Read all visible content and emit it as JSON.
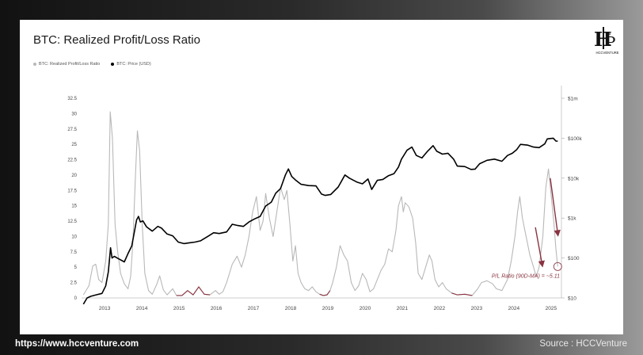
{
  "header": {
    "title": "BTC: Realized Profit/Loss Ratio",
    "logo_text": "HCCVENTURE"
  },
  "legend": [
    {
      "label": "BTC: Realized Profit/Loss Ratio",
      "color": "#b8b8b8"
    },
    {
      "label": "BTC: Price (USD)",
      "color": "#000000"
    }
  ],
  "footer": {
    "url": "https://www.hccventure.com",
    "source": "Source : HCCVenture"
  },
  "colors": {
    "ratio_line": "#b8b8b8",
    "price_line": "#000000",
    "annotation": "#8a3340",
    "low_band": "#8a3340"
  },
  "chart_data": {
    "type": "line",
    "title": "BTC: Realized Profit/Loss Ratio",
    "x_tick_labels": [
      "2013",
      "2014",
      "2015",
      "2016",
      "2017",
      "2018",
      "2019",
      "2020",
      "2021",
      "2022",
      "2023",
      "2024",
      "2025"
    ],
    "left_axis": {
      "ticks": [
        "0",
        "2.5",
        "5",
        "7.5",
        "10",
        "12.5",
        "15",
        "17.5",
        "20",
        "22.5",
        "25",
        "27.5",
        "30",
        "32.5"
      ],
      "range": [
        0,
        32.5
      ]
    },
    "right_axis": {
      "scale": "log",
      "ticks": [
        "$10",
        "$100",
        "$1k",
        "$10k",
        "$100k",
        "$1m"
      ],
      "range": [
        10,
        1000000
      ]
    },
    "series": [
      {
        "name": "BTC: Realized Profit/Loss Ratio",
        "axis": "left",
        "points": [
          [
            2012.45,
            0.5
          ],
          [
            2012.6,
            2
          ],
          [
            2012.7,
            5.2
          ],
          [
            2012.78,
            5.5
          ],
          [
            2012.86,
            3
          ],
          [
            2012.95,
            2.5
          ],
          [
            2013.05,
            6
          ],
          [
            2013.12,
            12
          ],
          [
            2013.17,
            30.3
          ],
          [
            2013.23,
            26
          ],
          [
            2013.3,
            12
          ],
          [
            2013.37,
            7.5
          ],
          [
            2013.45,
            4
          ],
          [
            2013.55,
            2.3
          ],
          [
            2013.65,
            1.5
          ],
          [
            2013.72,
            3.5
          ],
          [
            2013.78,
            9
          ],
          [
            2013.85,
            20
          ],
          [
            2013.9,
            27.2
          ],
          [
            2013.96,
            24
          ],
          [
            2014.03,
            12
          ],
          [
            2014.1,
            4
          ],
          [
            2014.2,
            1.2
          ],
          [
            2014.3,
            0.6
          ],
          [
            2014.42,
            2.2
          ],
          [
            2014.5,
            3.6
          ],
          [
            2014.6,
            1.3
          ],
          [
            2014.7,
            0.5
          ],
          [
            2014.85,
            1.5
          ],
          [
            2014.95,
            0.4
          ],
          [
            2015.1,
            0.4
          ],
          [
            2015.25,
            1.2
          ],
          [
            2015.4,
            0.5
          ],
          [
            2015.55,
            1.8
          ],
          [
            2015.7,
            0.6
          ],
          [
            2015.85,
            0.5
          ],
          [
            2016.0,
            1.2
          ],
          [
            2016.1,
            0.6
          ],
          [
            2016.2,
            1.0
          ],
          [
            2016.3,
            2.5
          ],
          [
            2016.45,
            5.5
          ],
          [
            2016.58,
            6.8
          ],
          [
            2016.7,
            5
          ],
          [
            2016.8,
            7
          ],
          [
            2016.9,
            10
          ],
          [
            2017.0,
            14
          ],
          [
            2017.1,
            16.5
          ],
          [
            2017.2,
            11
          ],
          [
            2017.28,
            12.5
          ],
          [
            2017.35,
            17
          ],
          [
            2017.45,
            13
          ],
          [
            2017.55,
            10
          ],
          [
            2017.65,
            14
          ],
          [
            2017.75,
            18
          ],
          [
            2017.85,
            16
          ],
          [
            2017.92,
            17.5
          ],
          [
            2018.0,
            12
          ],
          [
            2018.08,
            6
          ],
          [
            2018.15,
            8.5
          ],
          [
            2018.22,
            4
          ],
          [
            2018.3,
            2.5
          ],
          [
            2018.4,
            1.5
          ],
          [
            2018.5,
            1.2
          ],
          [
            2018.6,
            1.8
          ],
          [
            2018.7,
            1.0
          ],
          [
            2018.8,
            0.6
          ],
          [
            2018.9,
            0.4
          ],
          [
            2019.0,
            0.5
          ],
          [
            2019.08,
            1.2
          ],
          [
            2019.15,
            2.5
          ],
          [
            2019.25,
            5
          ],
          [
            2019.35,
            8.5
          ],
          [
            2019.45,
            7
          ],
          [
            2019.55,
            6
          ],
          [
            2019.65,
            2.5
          ],
          [
            2019.75,
            1.2
          ],
          [
            2019.85,
            2
          ],
          [
            2019.95,
            4
          ],
          [
            2020.05,
            3
          ],
          [
            2020.15,
            1
          ],
          [
            2020.25,
            1.5
          ],
          [
            2020.35,
            3
          ],
          [
            2020.45,
            4.5
          ],
          [
            2020.55,
            5.5
          ],
          [
            2020.65,
            8
          ],
          [
            2020.75,
            7.5
          ],
          [
            2020.85,
            11
          ],
          [
            2020.92,
            15
          ],
          [
            2021.0,
            16.5
          ],
          [
            2021.05,
            14
          ],
          [
            2021.1,
            15.5
          ],
          [
            2021.2,
            14.8
          ],
          [
            2021.3,
            13
          ],
          [
            2021.38,
            9
          ],
          [
            2021.45,
            4
          ],
          [
            2021.55,
            3
          ],
          [
            2021.65,
            5
          ],
          [
            2021.75,
            7
          ],
          [
            2021.82,
            6
          ],
          [
            2021.9,
            3
          ],
          [
            2022.0,
            1.8
          ],
          [
            2022.1,
            2.5
          ],
          [
            2022.2,
            1.5
          ],
          [
            2022.35,
            0.8
          ],
          [
            2022.5,
            0.5
          ],
          [
            2022.7,
            0.6
          ],
          [
            2022.9,
            0.4
          ],
          [
            2023.05,
            1.5
          ],
          [
            2023.15,
            2.5
          ],
          [
            2023.3,
            2.8
          ],
          [
            2023.45,
            2.3
          ],
          [
            2023.55,
            1.5
          ],
          [
            2023.7,
            1.2
          ],
          [
            2023.85,
            3
          ],
          [
            2023.95,
            6
          ],
          [
            2024.05,
            10
          ],
          [
            2024.12,
            14
          ],
          [
            2024.18,
            16.5
          ],
          [
            2024.25,
            13
          ],
          [
            2024.35,
            10
          ],
          [
            2024.45,
            7
          ],
          [
            2024.55,
            5
          ],
          [
            2024.62,
            3.5
          ],
          [
            2024.7,
            5
          ],
          [
            2024.8,
            10
          ],
          [
            2024.88,
            18
          ],
          [
            2024.95,
            21
          ],
          [
            2025.02,
            17
          ],
          [
            2025.1,
            12
          ],
          [
            2025.15,
            8
          ],
          [
            2025.2,
            5.11
          ]
        ]
      },
      {
        "name": "BTC: Price (USD)",
        "axis": "right",
        "points": [
          [
            2012.45,
            7
          ],
          [
            2012.55,
            10
          ],
          [
            2012.65,
            11
          ],
          [
            2012.8,
            12
          ],
          [
            2012.95,
            13
          ],
          [
            2013.05,
            20
          ],
          [
            2013.12,
            45
          ],
          [
            2013.18,
            180
          ],
          [
            2013.22,
            100
          ],
          [
            2013.28,
            110
          ],
          [
            2013.4,
            95
          ],
          [
            2013.55,
            80
          ],
          [
            2013.65,
            130
          ],
          [
            2013.75,
            200
          ],
          [
            2013.88,
            900
          ],
          [
            2013.93,
            1100
          ],
          [
            2013.98,
            800
          ],
          [
            2014.05,
            850
          ],
          [
            2014.15,
            600
          ],
          [
            2014.3,
            470
          ],
          [
            2014.45,
            620
          ],
          [
            2014.55,
            560
          ],
          [
            2014.7,
            400
          ],
          [
            2014.85,
            360
          ],
          [
            2015.0,
            250
          ],
          [
            2015.15,
            230
          ],
          [
            2015.3,
            240
          ],
          [
            2015.45,
            250
          ],
          [
            2015.6,
            270
          ],
          [
            2015.8,
            350
          ],
          [
            2015.95,
            430
          ],
          [
            2016.1,
            410
          ],
          [
            2016.3,
            450
          ],
          [
            2016.45,
            700
          ],
          [
            2016.6,
            650
          ],
          [
            2016.75,
            620
          ],
          [
            2016.9,
            800
          ],
          [
            2017.05,
            950
          ],
          [
            2017.2,
            1100
          ],
          [
            2017.35,
            2000
          ],
          [
            2017.5,
            2500
          ],
          [
            2017.62,
            4200
          ],
          [
            2017.75,
            5500
          ],
          [
            2017.88,
            12000
          ],
          [
            2017.96,
            17000
          ],
          [
            2018.05,
            11000
          ],
          [
            2018.15,
            9000
          ],
          [
            2018.3,
            7000
          ],
          [
            2018.5,
            6500
          ],
          [
            2018.7,
            6400
          ],
          [
            2018.85,
            4000
          ],
          [
            2018.95,
            3700
          ],
          [
            2019.1,
            3900
          ],
          [
            2019.3,
            6000
          ],
          [
            2019.48,
            12000
          ],
          [
            2019.6,
            10000
          ],
          [
            2019.8,
            8000
          ],
          [
            2019.95,
            7200
          ],
          [
            2020.1,
            9500
          ],
          [
            2020.2,
            5200
          ],
          [
            2020.35,
            8800
          ],
          [
            2020.5,
            9300
          ],
          [
            2020.65,
            11500
          ],
          [
            2020.8,
            13000
          ],
          [
            2020.92,
            19000
          ],
          [
            2021.0,
            30000
          ],
          [
            2021.15,
            50000
          ],
          [
            2021.28,
            60000
          ],
          [
            2021.4,
            37000
          ],
          [
            2021.55,
            32000
          ],
          [
            2021.7,
            47000
          ],
          [
            2021.85,
            65000
          ],
          [
            2021.95,
            47000
          ],
          [
            2022.1,
            40000
          ],
          [
            2022.25,
            42000
          ],
          [
            2022.4,
            30000
          ],
          [
            2022.5,
            20000
          ],
          [
            2022.7,
            19500
          ],
          [
            2022.87,
            16500
          ],
          [
            2022.98,
            16800
          ],
          [
            2023.1,
            23000
          ],
          [
            2023.3,
            28000
          ],
          [
            2023.5,
            30000
          ],
          [
            2023.7,
            26500
          ],
          [
            2023.85,
            37000
          ],
          [
            2023.98,
            42000
          ],
          [
            2024.1,
            52000
          ],
          [
            2024.2,
            70000
          ],
          [
            2024.4,
            67000
          ],
          [
            2024.55,
            60000
          ],
          [
            2024.7,
            58000
          ],
          [
            2024.85,
            72000
          ],
          [
            2024.92,
            96000
          ],
          [
            2025.0,
            98000
          ],
          [
            2025.08,
            100000
          ],
          [
            2025.15,
            85000
          ],
          [
            2025.2,
            84000
          ]
        ]
      }
    ],
    "annotation": "P/L Ratio (90D-MA) = ~5.11"
  }
}
